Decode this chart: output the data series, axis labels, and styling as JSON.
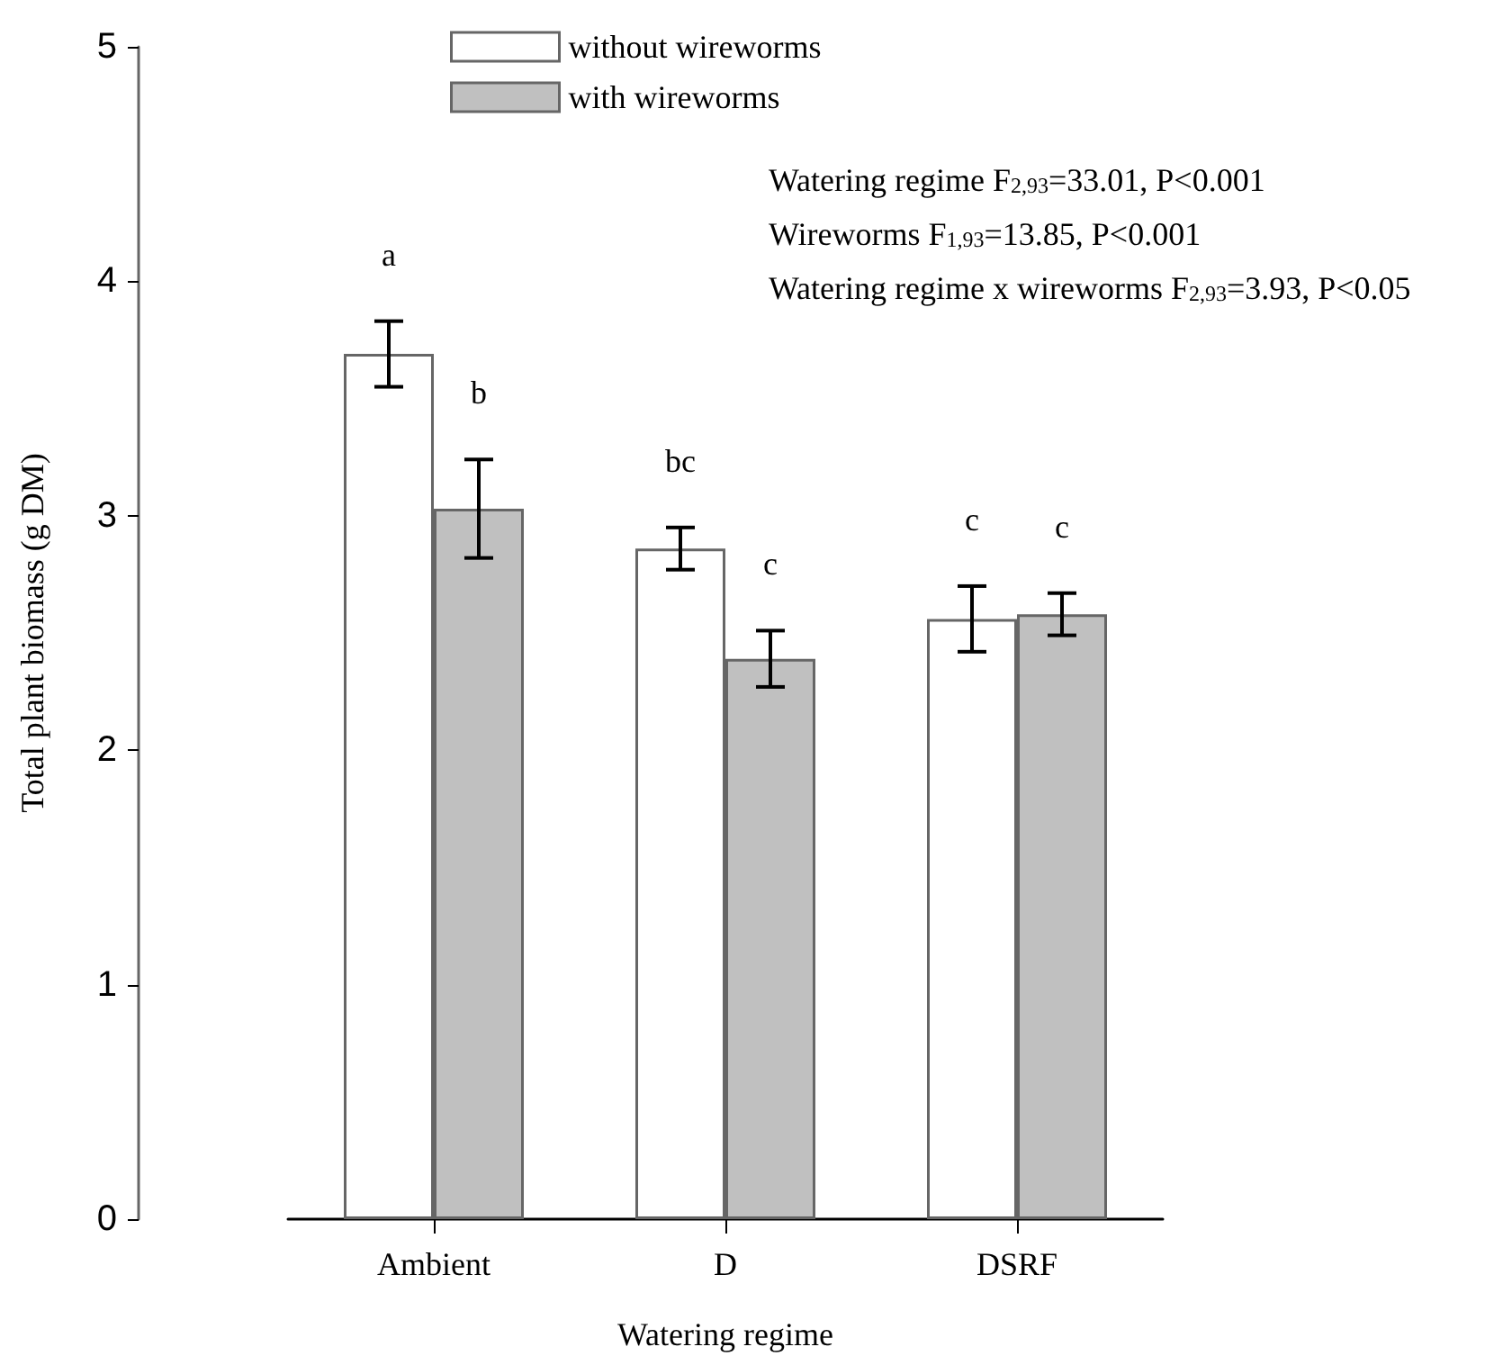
{
  "chart_data": {
    "type": "bar",
    "xlabel": "Watering regime",
    "ylabel": "Total plant biomass (g DM)",
    "categories": [
      "Ambient",
      "D",
      "DSRF"
    ],
    "series": [
      {
        "name": "without wireworms",
        "color": "#ffffff",
        "values": [
          3.69,
          2.86,
          2.56
        ],
        "errors": [
          0.14,
          0.09,
          0.14
        ],
        "value_labels": [
          "a",
          "bc",
          "c"
        ]
      },
      {
        "name": "with wireworms",
        "color": "#c0c0c0",
        "values": [
          3.03,
          2.39,
          2.58
        ],
        "errors": [
          0.21,
          0.12,
          0.09
        ],
        "value_labels": [
          "b",
          "c",
          "c"
        ]
      }
    ],
    "ylim": [
      0,
      5
    ],
    "yticks": [
      0,
      1,
      2,
      3,
      4,
      5
    ],
    "grid": false,
    "legend": "top left",
    "annotations": [
      "Watering regime F$_{2,93}$=33.01, P<0.001",
      "Wireworms F$_{1,93}$=13.85, P<0.001",
      "Watering regime x wireworms F$_{2,93}$=3.93, P<0.05"
    ]
  }
}
